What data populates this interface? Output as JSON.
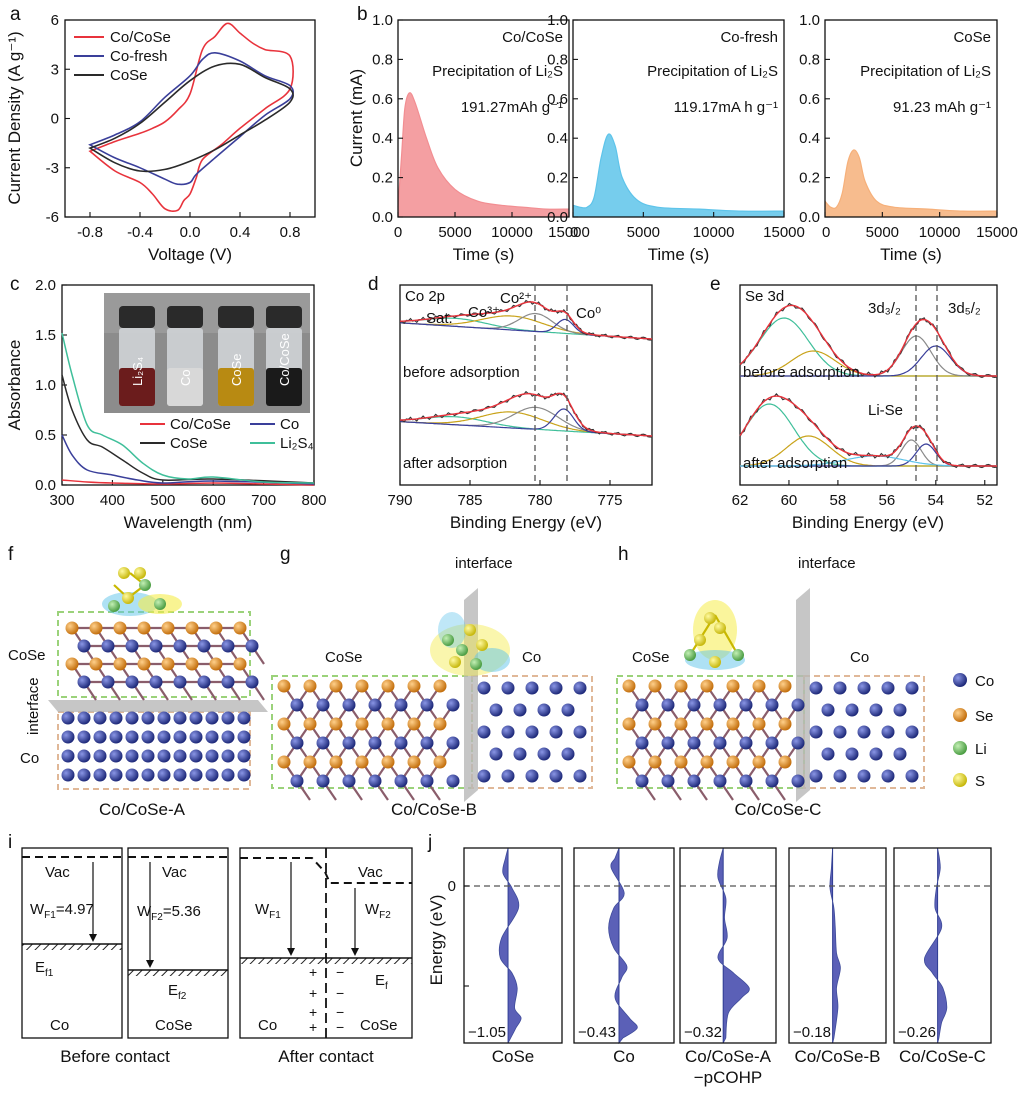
{
  "panel_letters": {
    "a": "a",
    "b": "b",
    "c": "c",
    "d": "d",
    "e": "e",
    "f": "f",
    "g": "g",
    "h": "h",
    "i": "i",
    "j": "j"
  },
  "colors": {
    "red": "#e8333c",
    "blue": "#3a3f9a",
    "dark": "#2a2a2a",
    "pink": "#f28e92",
    "cyan": "#5ec4ea",
    "orange": "#f6b07a",
    "teal": "#3fbf9a",
    "gold": "#c9a31a",
    "co": "#2b3990",
    "se": "#e08b1c",
    "li": "#6fbf63",
    "s": "#e6dc22"
  },
  "chart_data": [
    {
      "id": "a",
      "type": "line",
      "title": "",
      "xlabel": "Voltage (V)",
      "ylabel": "Current Density (A g⁻¹)",
      "xlim": [
        -1.0,
        1.0
      ],
      "ylim": [
        -6,
        6
      ],
      "xticks": [
        "-0.8",
        "-0.4",
        "0.0",
        "0.4",
        "0.8"
      ],
      "yticks": [
        "-6",
        "-3",
        "0",
        "3",
        "6"
      ],
      "series": [
        {
          "name": "Co/CoSe",
          "color": "#e8333c",
          "x": [
            -0.8,
            -0.6,
            -0.4,
            -0.3,
            -0.2,
            -0.1,
            0.0,
            0.1,
            0.2,
            0.3,
            0.4,
            0.5,
            0.6,
            0.8,
            0.8,
            0.6,
            0.4,
            0.25,
            0.1,
            0.05,
            0.0,
            -0.05,
            -0.1,
            -0.2,
            -0.3,
            -0.4,
            -0.6,
            -0.8
          ],
          "y": [
            -2.0,
            -1.4,
            -0.9,
            -0.6,
            -0.2,
            0.5,
            1.5,
            4.2,
            5.0,
            5.8,
            5.2,
            4.6,
            4.2,
            3.8,
            1.8,
            0.6,
            -0.6,
            -1.6,
            -2.5,
            -3.6,
            -4.6,
            -5.0,
            -5.6,
            -5.5,
            -4.6,
            -3.9,
            -3.2,
            -2.0
          ]
        },
        {
          "name": "Co-fresh",
          "color": "#3a3f9a",
          "x": [
            -0.8,
            -0.6,
            -0.4,
            -0.2,
            0.0,
            0.1,
            0.2,
            0.4,
            0.6,
            0.8,
            0.8,
            0.6,
            0.4,
            0.2,
            0.05,
            0.0,
            -0.1,
            -0.2,
            -0.4,
            -0.6,
            -0.8
          ],
          "y": [
            -1.6,
            -1.0,
            -0.2,
            1.3,
            2.6,
            3.6,
            4.0,
            3.5,
            2.6,
            2.0,
            1.2,
            0.2,
            -1.1,
            -2.4,
            -3.4,
            -3.9,
            -4.0,
            -3.7,
            -3.0,
            -2.4,
            -1.6
          ]
        },
        {
          "name": "CoSe",
          "color": "#2a2a2a",
          "x": [
            -0.8,
            -0.6,
            -0.4,
            -0.2,
            0.0,
            0.2,
            0.4,
            0.6,
            0.8,
            0.8,
            0.6,
            0.4,
            0.2,
            0.0,
            -0.2,
            -0.4,
            -0.6,
            -0.8
          ],
          "y": [
            -1.8,
            -1.2,
            -0.3,
            1.0,
            2.3,
            3.2,
            3.3,
            2.5,
            1.8,
            1.0,
            -0.1,
            -1.0,
            -1.9,
            -2.6,
            -3.1,
            -3.2,
            -2.7,
            -1.8
          ]
        }
      ]
    },
    {
      "id": "b",
      "type": "area",
      "ylabel": "Current (mA)",
      "xlabel": "Time (s)",
      "xlim": [
        0,
        15000
      ],
      "ylim": [
        0,
        1.0
      ],
      "xticks": [
        "0",
        "5000",
        "10000",
        "15000"
      ],
      "yticks": [
        "0.0",
        "0.2",
        "0.4",
        "0.6",
        "0.8",
        "1.0"
      ],
      "series": [
        {
          "name": "Co/CoSe",
          "color": "#f28e92",
          "title": "Co/CoSe",
          "note": "Precipitation of Li₂S",
          "capacity": "191.27mAh g⁻¹",
          "x": [
            0,
            300,
            600,
            1000,
            1500,
            2500,
            3500,
            5000,
            7000,
            9000,
            11000,
            13000,
            15000
          ],
          "y": [
            0.05,
            0.3,
            0.55,
            0.63,
            0.58,
            0.4,
            0.25,
            0.14,
            0.08,
            0.06,
            0.05,
            0.04,
            0.04
          ]
        },
        {
          "name": "Co-fresh",
          "color": "#5ec4ea",
          "title": "Co-fresh",
          "note": "Precipitation of Li₂S",
          "capacity": "119.17mA h g⁻¹",
          "x": [
            0,
            500,
            1000,
            1500,
            2000,
            2500,
            3000,
            3500,
            4500,
            6000,
            9000,
            12000,
            15000
          ],
          "y": [
            0.06,
            0.05,
            0.05,
            0.1,
            0.3,
            0.42,
            0.36,
            0.2,
            0.09,
            0.05,
            0.04,
            0.03,
            0.03
          ]
        },
        {
          "name": "CoSe",
          "color": "#f6b07a",
          "title": "CoSe",
          "note": "Precipitation of Li₂S",
          "capacity": "91.23 mAh g⁻¹",
          "x": [
            0,
            500,
            1000,
            1500,
            2000,
            2500,
            3000,
            3500,
            4500,
            6000,
            9000,
            12000,
            15000
          ],
          "y": [
            0.08,
            0.05,
            0.05,
            0.12,
            0.28,
            0.34,
            0.3,
            0.18,
            0.08,
            0.05,
            0.04,
            0.03,
            0.03
          ]
        }
      ]
    },
    {
      "id": "c",
      "type": "line",
      "xlabel": "Wavelength (nm)",
      "ylabel": "Absorbance",
      "xlim": [
        300,
        800
      ],
      "ylim": [
        0,
        2.0
      ],
      "xticks": [
        "300",
        "400",
        "500",
        "600",
        "700",
        "800"
      ],
      "yticks": [
        "0.0",
        "0.5",
        "1.0",
        "1.5",
        "2.0"
      ],
      "inset_labels": [
        "Li₂S₄",
        "Co",
        "CoSe",
        "Co/CoSe"
      ],
      "series": [
        {
          "name": "Co/CoSe",
          "color": "#e8333c",
          "x": [
            300,
            350,
            400,
            500,
            600,
            700,
            800
          ],
          "y": [
            0.05,
            0.03,
            0.02,
            0.01,
            0.02,
            0.01,
            0.0
          ]
        },
        {
          "name": "Co",
          "color": "#3a3f9a",
          "x": [
            300,
            320,
            350,
            400,
            450,
            500,
            600,
            800
          ],
          "y": [
            0.5,
            0.3,
            0.15,
            0.1,
            0.05,
            0.02,
            0.04,
            0.01
          ]
        },
        {
          "name": "CoSe",
          "color": "#2a2a2a",
          "x": [
            300,
            320,
            350,
            380,
            420,
            460,
            500,
            600,
            800
          ],
          "y": [
            1.1,
            0.75,
            0.45,
            0.38,
            0.25,
            0.12,
            0.05,
            0.06,
            0.02
          ]
        },
        {
          "name": "Li₂S₄",
          "color": "#3fbf9a",
          "x": [
            300,
            320,
            350,
            380,
            420,
            460,
            500,
            550,
            600,
            700,
            800
          ],
          "y": [
            1.52,
            1.1,
            0.6,
            0.5,
            0.4,
            0.22,
            0.1,
            0.06,
            0.08,
            0.03,
            0.02
          ]
        }
      ]
    },
    {
      "id": "d",
      "type": "line",
      "title": "Co 2p",
      "xlabel": "Binding Energy (eV)",
      "xlim": [
        790,
        772
      ],
      "xticks": [
        "790",
        "785",
        "780",
        "775"
      ],
      "top_label": "before adsorption",
      "bottom_label": "after adsorption",
      "peaks": [
        "Sat.",
        "Co³⁺",
        "Co²⁺",
        "Co⁰"
      ]
    },
    {
      "id": "e",
      "type": "line",
      "title": "Se 3d",
      "xlabel": "Binding Energy (eV)",
      "xlim": [
        62,
        51.5
      ],
      "xticks": [
        "62",
        "60",
        "58",
        "56",
        "54",
        "52"
      ],
      "top_label": "before adsorption",
      "bottom_label": "after adsorption",
      "peaks": [
        "3d₃/₂",
        "3d₅/₂",
        "Li-Se"
      ]
    },
    {
      "id": "j",
      "type": "area",
      "ylabel": "Energy (eV)",
      "xlabel": "−pCOHP",
      "yticks": [
        "0"
      ],
      "panels": [
        {
          "name": "CoSe",
          "value": "−1.05"
        },
        {
          "name": "Co",
          "value": "−0.43"
        },
        {
          "name": "Co/CoSe-A",
          "value": "−0.32"
        },
        {
          "name": "Co/CoSe-B",
          "value": "−0.18"
        },
        {
          "name": "Co/CoSe-C",
          "value": "−0.26"
        }
      ]
    }
  ],
  "structures": {
    "f": {
      "caption": "Co/CoSe-A",
      "label_top": "CoSe",
      "label_side": "interface",
      "label_bottom": "Co"
    },
    "g": {
      "caption": "Co/CoSe-B",
      "label_left": "CoSe",
      "label_right": "Co",
      "label_interface": "interface"
    },
    "h": {
      "caption": "Co/CoSe-C",
      "label_left": "CoSe",
      "label_right": "Co",
      "label_interface": "interface"
    },
    "legend": [
      "Co",
      "Se",
      "Li",
      "S"
    ]
  },
  "band_diagram": {
    "vac": "Vac",
    "wf1": "W",
    "wf1_sub": "F1",
    "wf1_val": "=4.97",
    "wf2": "W",
    "wf2_sub": "F2",
    "wf2_val": "=5.36",
    "ef1": "E",
    "ef1_sub": "f1",
    "ef2": "E",
    "ef2_sub": "f2",
    "ef": "E",
    "ef_sub": "f",
    "co": "Co",
    "cose": "CoSe",
    "before": "Before contact",
    "after": "After contact"
  }
}
